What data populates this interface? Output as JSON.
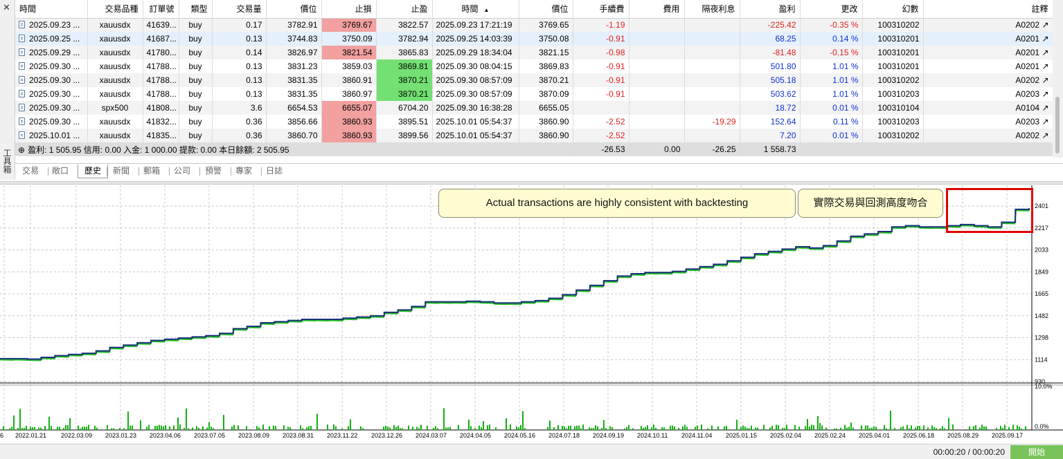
{
  "toolbox": {
    "close": "✕",
    "title": "工具箱"
  },
  "table": {
    "headers": [
      "時間",
      "交易品種",
      "訂單號",
      "類型",
      "交易量",
      "價位",
      "止損",
      "止盈",
      "時間",
      "價位",
      "手續費",
      "費用",
      "隔夜利息",
      "盈利",
      "更改",
      "幻數",
      "註釋"
    ],
    "sort_arrow": "▲",
    "rows": [
      {
        "open_time": "2025.09.23 ...",
        "symbol": "xauusdx",
        "order": "41639...",
        "type": "buy",
        "volume": "0.17",
        "open_price": "3782.91",
        "sl": "3769.67",
        "tp": "3822.57",
        "close_time": "2025.09.23 17:21:19",
        "close_price": "3769.65",
        "commission": "-1.19",
        "fee": "",
        "swap": "",
        "profit": "-225.42",
        "change": "-0.35 %",
        "magic": "100310202",
        "comment": "A0202 ↗"
      },
      {
        "open_time": "2025.09.25 ...",
        "symbol": "xauusdx",
        "order": "41687...",
        "type": "buy",
        "volume": "0.13",
        "open_price": "3744.83",
        "sl": "3750.09",
        "tp": "3782.94",
        "close_time": "2025.09.25 14:03:39",
        "close_price": "3750.08",
        "commission": "-0.91",
        "fee": "",
        "swap": "",
        "profit": "68.25",
        "change": "0.14 %",
        "magic": "100310201",
        "comment": "A0201 ↗"
      },
      {
        "open_time": "2025.09.29 ...",
        "symbol": "xauusdx",
        "order": "41780...",
        "type": "buy",
        "volume": "0.14",
        "open_price": "3826.97",
        "sl": "3821.54",
        "tp": "3865.83",
        "close_time": "2025.09.29 18:34:04",
        "close_price": "3821.15",
        "commission": "-0.98",
        "fee": "",
        "swap": "",
        "profit": "-81.48",
        "change": "-0.15 %",
        "magic": "100310201",
        "comment": "A0201 ↗"
      },
      {
        "open_time": "2025.09.30 ...",
        "symbol": "xauusdx",
        "order": "41788...",
        "type": "buy",
        "volume": "0.13",
        "open_price": "3831.23",
        "sl": "3859.03",
        "tp": "3869.81",
        "close_time": "2025.09.30 08:04:15",
        "close_price": "3869.83",
        "commission": "-0.91",
        "fee": "",
        "swap": "",
        "profit": "501.80",
        "change": "1.01 %",
        "magic": "100310201",
        "comment": "A0201 ↗"
      },
      {
        "open_time": "2025.09.30 ...",
        "symbol": "xauusdx",
        "order": "41788...",
        "type": "buy",
        "volume": "0.13",
        "open_price": "3831.35",
        "sl": "3860.91",
        "tp": "3870.21",
        "close_time": "2025.09.30 08:57:09",
        "close_price": "3870.21",
        "commission": "-0.91",
        "fee": "",
        "swap": "",
        "profit": "505.18",
        "change": "1.01 %",
        "magic": "100310202",
        "comment": "A0202 ↗"
      },
      {
        "open_time": "2025.09.30 ...",
        "symbol": "xauusdx",
        "order": "41788...",
        "type": "buy",
        "volume": "0.13",
        "open_price": "3831.35",
        "sl": "3860.97",
        "tp": "3870.21",
        "close_time": "2025.09.30 08:57:09",
        "close_price": "3870.09",
        "commission": "-0.91",
        "fee": "",
        "swap": "",
        "profit": "503.62",
        "change": "1.01 %",
        "magic": "100310203",
        "comment": "A0203 ↗"
      },
      {
        "open_time": "2025.09.30 ...",
        "symbol": "spx500",
        "order": "41808...",
        "type": "buy",
        "volume": "3.6",
        "open_price": "6654.53",
        "sl": "6655.07",
        "tp": "6704.20",
        "close_time": "2025.09.30 16:38:28",
        "close_price": "6655.05",
        "commission": "",
        "fee": "",
        "swap": "",
        "profit": "18.72",
        "change": "0.01 %",
        "magic": "100310104",
        "comment": "A0104 ↗"
      },
      {
        "open_time": "2025.09.30 ...",
        "symbol": "xauusdx",
        "order": "41832...",
        "type": "buy",
        "volume": "0.36",
        "open_price": "3856.66",
        "sl": "3860.93",
        "tp": "3895.51",
        "close_time": "2025.10.01 05:54:37",
        "close_price": "3860.90",
        "commission": "-2.52",
        "fee": "",
        "swap": "-19.29",
        "profit": "152.64",
        "change": "0.11 %",
        "magic": "100310203",
        "comment": "A0203 ↗"
      },
      {
        "open_time": "2025.10.01 ...",
        "symbol": "xauusdx",
        "order": "41835...",
        "type": "buy",
        "volume": "0.36",
        "open_price": "3860.70",
        "sl": "3860.93",
        "tp": "3899.56",
        "close_time": "2025.10.01 05:54:37",
        "close_price": "3860.90",
        "commission": "-2.52",
        "fee": "",
        "swap": "",
        "profit": "7.20",
        "change": "0.01 %",
        "magic": "100310202",
        "comment": "A0202 ↗"
      }
    ],
    "summary": {
      "icon": "⊕",
      "text": "盈利: 1 505.95  信用: 0.00  入金: 1 000.00  提款: 0.00  本日餘額: 2 505.95",
      "commission": "-26.53",
      "fee": "0.00",
      "swap": "-26.25",
      "profit": "1 558.73"
    }
  },
  "tabs": [
    "交易",
    "敞口",
    "歷史",
    "新聞",
    "郵箱",
    "公司",
    "預警",
    "專家",
    "日誌"
  ],
  "active_tab": "歷史",
  "chart": {
    "callout_en": "Actual transactions are highly consistent with backtesting",
    "callout_zh": "實際交易與回測高度吻合",
    "y_labels": [
      "2401",
      "2217",
      "2033",
      "1849",
      "1665",
      "1482",
      "1298",
      "1114",
      "930"
    ],
    "volume_labels": [
      "10.0%",
      "0.0%"
    ],
    "x_labels": [
      "6",
      "2022.01.21",
      "2022.03.09",
      "2023.01.23",
      "2023.04.06",
      "2023.07.05",
      "2023.08.09",
      "2023.08.31",
      "2023.11.22",
      "2023.12.26",
      "2024.03.07",
      "2024.04.05",
      "2024.05.16",
      "2024.07.18",
      "2024.09.19",
      "2024.10.11",
      "2024.11.04",
      "2025.01.15",
      "2025.02.04",
      "2025.02.24",
      "2025.04.01",
      "2025.06.18",
      "2025.08.29",
      "2025.09.17"
    ],
    "colors": {
      "balance": "#1a2f7a",
      "equity": "#22c022",
      "volume": "#12b012",
      "grid": "#c8c8c8",
      "highlight": "#e00000"
    }
  },
  "chart_data": {
    "type": "line",
    "y_range": [
      930,
      2401
    ],
    "series": [
      {
        "values": [
          1114,
          1114,
          1110,
          1125,
          1140,
          1150,
          1160,
          1180,
          1210,
          1230,
          1250,
          1270,
          1280,
          1290,
          1300,
          1310,
          1330,
          1370,
          1390,
          1420,
          1430,
          1440,
          1450,
          1450,
          1450,
          1460,
          1470,
          1480,
          1510,
          1530,
          1560,
          1600,
          1600,
          1600,
          1605,
          1600,
          1590,
          1590,
          1600,
          1610,
          1630,
          1660,
          1700,
          1740,
          1780,
          1820,
          1840,
          1850,
          1850,
          1860,
          1880,
          1900,
          1920,
          1950,
          1980,
          2010,
          2030,
          2050,
          2070,
          2060,
          2080,
          2120,
          2160,
          2180,
          2200,
          2240,
          2250,
          2240,
          2240,
          2250,
          2260,
          2250,
          2240,
          2280,
          2390,
          2400
        ]
      }
    ],
    "volume_range_pct": [
      0,
      10
    ]
  },
  "status": {
    "timer": "00:00:20 / 00:00:20",
    "start": "開始"
  }
}
